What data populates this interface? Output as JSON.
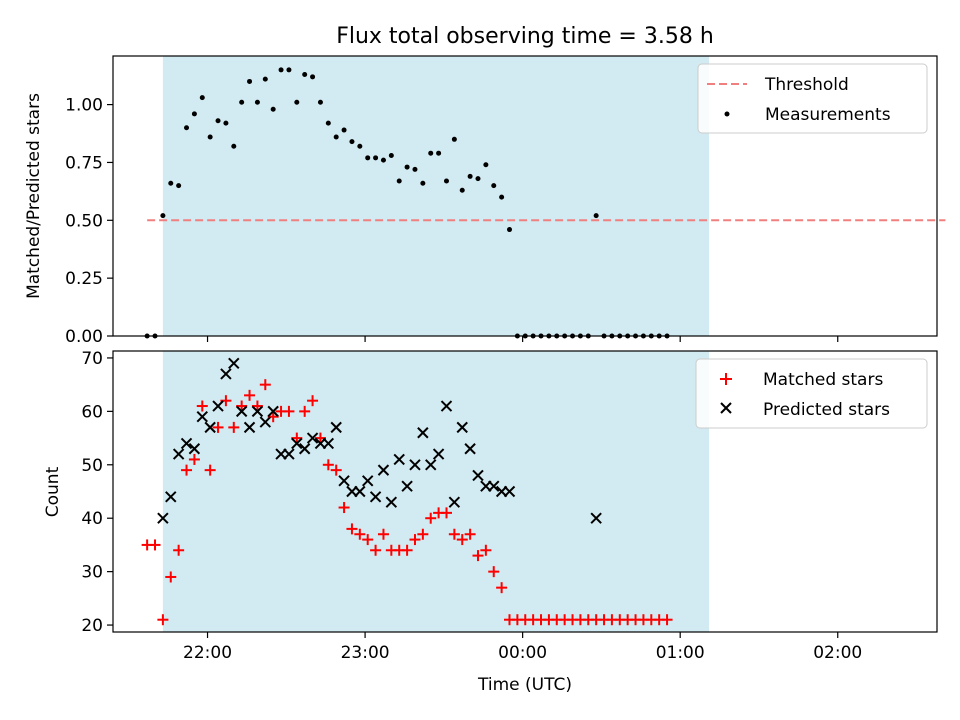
{
  "figure": {
    "title": "Flux total observing time = 3.58 h"
  },
  "chart_data": [
    {
      "type": "scatter",
      "ylabel": "Matched/Predicted stars",
      "xlim": [
        21.4,
        2.63
      ],
      "ylim": [
        0.0,
        1.21
      ],
      "x_ticks": [
        "22:00",
        "23:00",
        "00:00",
        "01:00",
        "02:00"
      ],
      "y_ticks": [
        "0.00",
        "0.25",
        "0.50",
        "0.75",
        "1.00"
      ],
      "observing_span": {
        "start": "21:43",
        "end": "01:11",
        "color": "#add8e6"
      },
      "legend_position": "upper right",
      "legend": [
        "Threshold",
        "Measurements"
      ],
      "series": [
        {
          "name": "Threshold",
          "kind": "dashed-line",
          "color": "#f08080",
          "value": 0.5,
          "x_range": [
            "21:37",
            "02:41"
          ]
        },
        {
          "name": "Measurements",
          "kind": "points",
          "color": "#000000",
          "points": [
            [
              "21:37",
              0.0
            ],
            [
              "21:40",
              0.0
            ],
            [
              "21:43",
              0.52
            ],
            [
              "21:46",
              0.66
            ],
            [
              "21:49",
              0.65
            ],
            [
              "21:52",
              0.9
            ],
            [
              "21:55",
              0.96
            ],
            [
              "21:58",
              1.03
            ],
            [
              "22:01",
              0.86
            ],
            [
              "22:04",
              0.93
            ],
            [
              "22:07",
              0.92
            ],
            [
              "22:10",
              0.82
            ],
            [
              "22:13",
              1.01
            ],
            [
              "22:16",
              1.1
            ],
            [
              "22:19",
              1.01
            ],
            [
              "22:22",
              1.11
            ],
            [
              "22:25",
              0.98
            ],
            [
              "22:28",
              1.15
            ],
            [
              "22:31",
              1.15
            ],
            [
              "22:34",
              1.01
            ],
            [
              "22:37",
              1.13
            ],
            [
              "22:40",
              1.12
            ],
            [
              "22:43",
              1.01
            ],
            [
              "22:46",
              0.92
            ],
            [
              "22:49",
              0.86
            ],
            [
              "22:52",
              0.89
            ],
            [
              "22:55",
              0.84
            ],
            [
              "22:58",
              0.82
            ],
            [
              "23:01",
              0.77
            ],
            [
              "23:04",
              0.77
            ],
            [
              "23:07",
              0.76
            ],
            [
              "23:10",
              0.78
            ],
            [
              "23:13",
              0.67
            ],
            [
              "23:16",
              0.73
            ],
            [
              "23:19",
              0.72
            ],
            [
              "23:22",
              0.66
            ],
            [
              "23:25",
              0.79
            ],
            [
              "23:28",
              0.79
            ],
            [
              "23:31",
              0.67
            ],
            [
              "23:34",
              0.85
            ],
            [
              "23:37",
              0.63
            ],
            [
              "23:40",
              0.69
            ],
            [
              "23:43",
              0.68
            ],
            [
              "23:46",
              0.74
            ],
            [
              "23:49",
              0.65
            ],
            [
              "23:52",
              0.6
            ],
            [
              "23:55",
              0.46
            ],
            [
              "23:58",
              0.0
            ],
            [
              "00:01",
              0.0
            ],
            [
              "00:04",
              0.0
            ],
            [
              "00:07",
              0.0
            ],
            [
              "00:10",
              0.0
            ],
            [
              "00:13",
              0.0
            ],
            [
              "00:16",
              0.0
            ],
            [
              "00:19",
              0.0
            ],
            [
              "00:22",
              0.0
            ],
            [
              "00:25",
              0.0
            ],
            [
              "00:28",
              0.52
            ],
            [
              "00:31",
              0.0
            ],
            [
              "00:34",
              0.0
            ],
            [
              "00:37",
              0.0
            ],
            [
              "00:40",
              0.0
            ],
            [
              "00:43",
              0.0
            ],
            [
              "00:46",
              0.0
            ],
            [
              "00:49",
              0.0
            ],
            [
              "00:52",
              0.0
            ],
            [
              "00:55",
              0.0
            ]
          ]
        }
      ]
    },
    {
      "type": "scatter",
      "xlabel": "Time (UTC)",
      "ylabel": "Count",
      "xlim": [
        21.4,
        2.63
      ],
      "ylim": [
        18.7,
        71.3
      ],
      "x_ticks": [
        "22:00",
        "23:00",
        "00:00",
        "01:00",
        "02:00"
      ],
      "y_ticks": [
        "20",
        "30",
        "40",
        "50",
        "60",
        "70"
      ],
      "observing_span": {
        "start": "21:43",
        "end": "01:11",
        "color": "#add8e6"
      },
      "legend_position": "upper right",
      "legend": [
        "Matched stars",
        "Predicted stars"
      ],
      "series": [
        {
          "name": "Matched stars",
          "marker": "+",
          "color": "#ff0000",
          "points": [
            [
              "21:37",
              35
            ],
            [
              "21:40",
              35
            ],
            [
              "21:43",
              21
            ],
            [
              "21:46",
              29
            ],
            [
              "21:49",
              34
            ],
            [
              "21:52",
              49
            ],
            [
              "21:55",
              51
            ],
            [
              "21:58",
              61
            ],
            [
              "22:01",
              49
            ],
            [
              "22:04",
              57
            ],
            [
              "22:07",
              62
            ],
            [
              "22:10",
              57
            ],
            [
              "22:13",
              61
            ],
            [
              "22:16",
              63
            ],
            [
              "22:19",
              61
            ],
            [
              "22:22",
              65
            ],
            [
              "22:25",
              59
            ],
            [
              "22:28",
              60
            ],
            [
              "22:31",
              60
            ],
            [
              "22:34",
              55
            ],
            [
              "22:37",
              60
            ],
            [
              "22:40",
              62
            ],
            [
              "22:43",
              55
            ],
            [
              "22:46",
              50
            ],
            [
              "22:49",
              49
            ],
            [
              "22:52",
              42
            ],
            [
              "22:55",
              38
            ],
            [
              "22:58",
              37
            ],
            [
              "23:01",
              36
            ],
            [
              "23:04",
              34
            ],
            [
              "23:07",
              37
            ],
            [
              "23:10",
              34
            ],
            [
              "23:13",
              34
            ],
            [
              "23:16",
              34
            ],
            [
              "23:19",
              36
            ],
            [
              "23:22",
              37
            ],
            [
              "23:25",
              40
            ],
            [
              "23:28",
              41
            ],
            [
              "23:31",
              41
            ],
            [
              "23:34",
              37
            ],
            [
              "23:37",
              36
            ],
            [
              "23:40",
              37
            ],
            [
              "23:43",
              33
            ],
            [
              "23:46",
              34
            ],
            [
              "23:49",
              30
            ],
            [
              "23:52",
              27
            ],
            [
              "23:55",
              21
            ],
            [
              "23:58",
              21
            ],
            [
              "00:01",
              21
            ],
            [
              "00:04",
              21
            ],
            [
              "00:07",
              21
            ],
            [
              "00:10",
              21
            ],
            [
              "00:13",
              21
            ],
            [
              "00:16",
              21
            ],
            [
              "00:19",
              21
            ],
            [
              "00:22",
              21
            ],
            [
              "00:25",
              21
            ],
            [
              "00:28",
              21
            ],
            [
              "00:31",
              21
            ],
            [
              "00:34",
              21
            ],
            [
              "00:37",
              21
            ],
            [
              "00:40",
              21
            ],
            [
              "00:43",
              21
            ],
            [
              "00:46",
              21
            ],
            [
              "00:49",
              21
            ],
            [
              "00:52",
              21
            ],
            [
              "00:55",
              21
            ]
          ]
        },
        {
          "name": "Predicted stars",
          "marker": "x",
          "color": "#000000",
          "points": [
            [
              "21:43",
              40
            ],
            [
              "21:46",
              44
            ],
            [
              "21:49",
              52
            ],
            [
              "21:52",
              54
            ],
            [
              "21:55",
              53
            ],
            [
              "21:58",
              59
            ],
            [
              "22:01",
              57
            ],
            [
              "22:04",
              61
            ],
            [
              "22:07",
              67
            ],
            [
              "22:10",
              69
            ],
            [
              "22:13",
              60
            ],
            [
              "22:16",
              57
            ],
            [
              "22:19",
              60
            ],
            [
              "22:22",
              58
            ],
            [
              "22:25",
              60
            ],
            [
              "22:28",
              52
            ],
            [
              "22:31",
              52
            ],
            [
              "22:34",
              54
            ],
            [
              "22:37",
              53
            ],
            [
              "22:40",
              55
            ],
            [
              "22:43",
              54
            ],
            [
              "22:46",
              54
            ],
            [
              "22:49",
              57
            ],
            [
              "22:52",
              47
            ],
            [
              "22:55",
              45
            ],
            [
              "22:58",
              45
            ],
            [
              "23:01",
              47
            ],
            [
              "23:04",
              44
            ],
            [
              "23:07",
              49
            ],
            [
              "23:10",
              43
            ],
            [
              "23:13",
              51
            ],
            [
              "23:16",
              46
            ],
            [
              "23:19",
              50
            ],
            [
              "23:22",
              56
            ],
            [
              "23:25",
              50
            ],
            [
              "23:28",
              52
            ],
            [
              "23:31",
              61
            ],
            [
              "23:34",
              43
            ],
            [
              "23:37",
              57
            ],
            [
              "23:40",
              53
            ],
            [
              "23:43",
              48
            ],
            [
              "23:46",
              46
            ],
            [
              "23:49",
              46
            ],
            [
              "23:52",
              45
            ],
            [
              "23:55",
              45
            ],
            [
              "00:28",
              40
            ]
          ]
        }
      ]
    }
  ]
}
